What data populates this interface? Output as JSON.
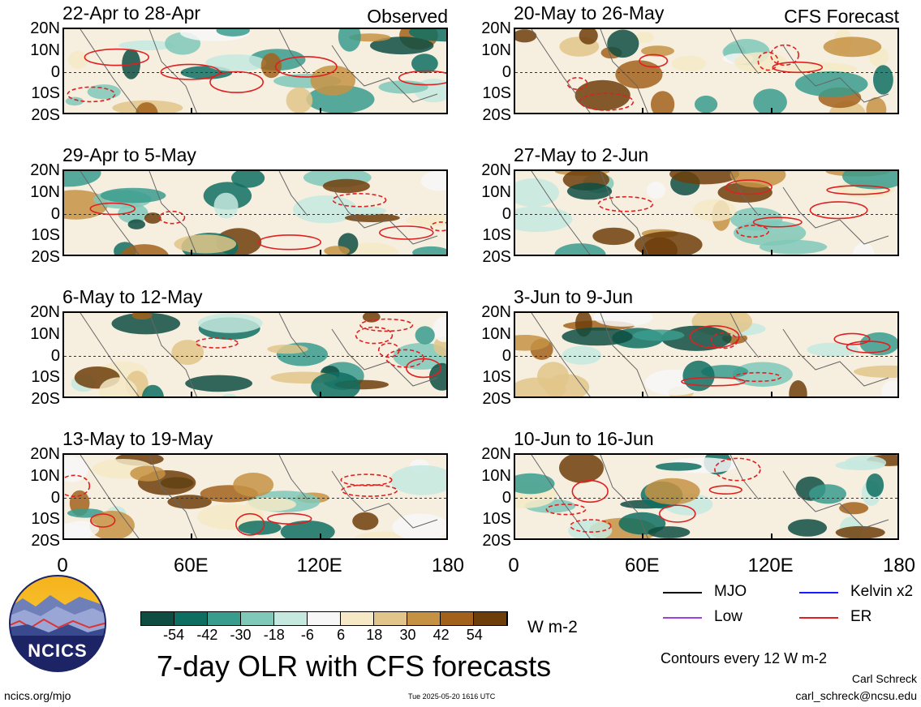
{
  "panels": [
    {
      "title": "22-Apr to 28-Apr",
      "label": "Observed",
      "col": 0,
      "row": 0
    },
    {
      "title": "29-Apr to 5-May",
      "label": "",
      "col": 0,
      "row": 1
    },
    {
      "title": "6-May to 12-May",
      "label": "",
      "col": 0,
      "row": 2
    },
    {
      "title": "13-May to 19-May",
      "label": "",
      "col": 0,
      "row": 3
    },
    {
      "title": "20-May to 26-May",
      "label": "CFS Forecast",
      "col": 1,
      "row": 0
    },
    {
      "title": "27-May to 2-Jun",
      "label": "",
      "col": 1,
      "row": 1
    },
    {
      "title": "3-Jun to 9-Jun",
      "label": "",
      "col": 1,
      "row": 2
    },
    {
      "title": "10-Jun to 16-Jun",
      "label": "",
      "col": 1,
      "row": 3
    }
  ],
  "yticks": [
    "20N",
    "10N",
    "0",
    "10S",
    "20S"
  ],
  "xticks": [
    "0",
    "60E",
    "120E",
    "180"
  ],
  "colorbar": {
    "colors": [
      "#0f4d42",
      "#0f6e62",
      "#3a9c8d",
      "#80c8b8",
      "#c6e9df",
      "#f7f7f7",
      "#f5e9c6",
      "#e2c58a",
      "#c59243",
      "#a2621b",
      "#6e3e0a"
    ],
    "tick_labels": [
      "-54",
      "-42",
      "-30",
      "-18",
      "-6",
      "6",
      "18",
      "30",
      "42",
      "54"
    ],
    "units": "W m-2"
  },
  "legend": [
    {
      "label": "MJO",
      "color": "#000000"
    },
    {
      "label": "Kelvin x2",
      "color": "#1a1aff"
    },
    {
      "label": "Low",
      "color": "#a040e0"
    },
    {
      "label": "ER",
      "color": "#e02020"
    }
  ],
  "title": "7-day OLR with CFS forecasts",
  "contour_note": "Contours every 12 W m-2",
  "author": "Carl Schreck",
  "email": "carl_schreck@ncsu.edu",
  "website": "ncics.org/mjo",
  "timestamp": "Tue 2025-05-20 1616 UTC",
  "logo_text": "NCICS",
  "chart_data": {
    "type": "heatmap",
    "title": "7-day OLR with CFS forecasts",
    "x_axis": {
      "ticks": [
        "0",
        "60E",
        "120E",
        "180"
      ],
      "range": [
        0,
        180
      ]
    },
    "y_axis": {
      "ticks": [
        "20N",
        "10N",
        "0",
        "10S",
        "20S"
      ],
      "range": [
        -20,
        20
      ]
    },
    "units": "W m-2",
    "levels": [
      -54,
      -42,
      -30,
      -18,
      -6,
      6,
      18,
      30,
      42,
      54
    ],
    "panels": [
      "22-Apr to 28-Apr",
      "29-Apr to 5-May",
      "6-May to 12-May",
      "13-May to 19-May",
      "20-May to 26-May",
      "27-May to 2-Jun",
      "3-Jun to 9-Jun",
      "10-Jun to 16-Jun"
    ],
    "legend": [
      "MJO",
      "Kelvin x2",
      "Low",
      "ER"
    ]
  }
}
